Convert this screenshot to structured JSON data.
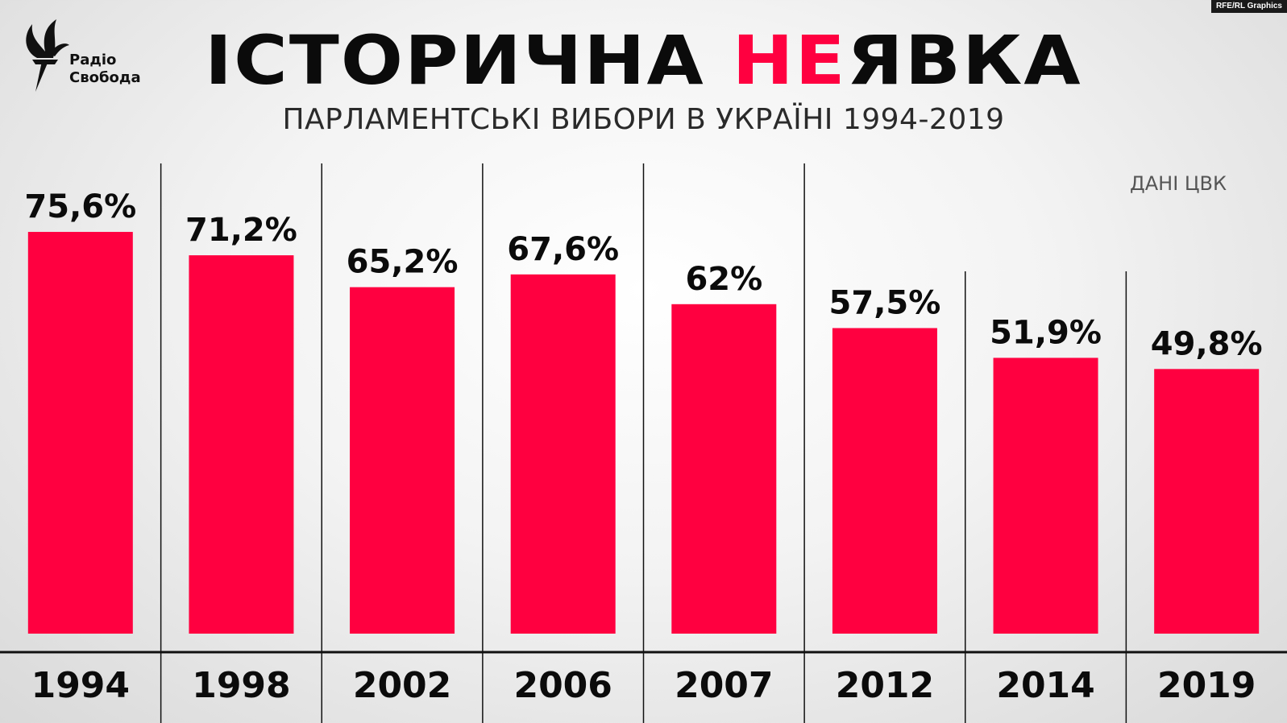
{
  "header": {
    "credit": "RFE/RL Graphics",
    "logo_line1": "Радіо",
    "logo_line2": "Свобода",
    "title_part1": "ІСТОРИЧНА ",
    "title_accent": "НЕ",
    "title_part2": "ЯВКА",
    "subtitle": "ПАРЛАМЕНТСЬКІ ВИБОРИ В УКРАЇНІ 1994-2019",
    "source": "ДАНІ ЦВК"
  },
  "colors": {
    "bar": "#ff0040",
    "text": "#0b0b0b"
  },
  "chart_data": {
    "type": "bar",
    "title": "ІСТОРИЧНА НЕЯВКА",
    "subtitle": "ПАРЛАМЕНТСЬКІ ВИБОРИ В УКРАЇНІ 1994-2019",
    "categories": [
      "1994",
      "1998",
      "2002",
      "2006",
      "2007",
      "2012",
      "2014",
      "2019"
    ],
    "values": [
      75.6,
      71.2,
      65.2,
      67.6,
      62,
      57.5,
      51.9,
      49.8
    ],
    "labels": [
      "75,6%",
      "71,2%",
      "65,2%",
      "67,6%",
      "62%",
      "57,5%",
      "51,9%",
      "49,8%"
    ],
    "xlabel": "",
    "ylabel": "",
    "grid": false
  }
}
